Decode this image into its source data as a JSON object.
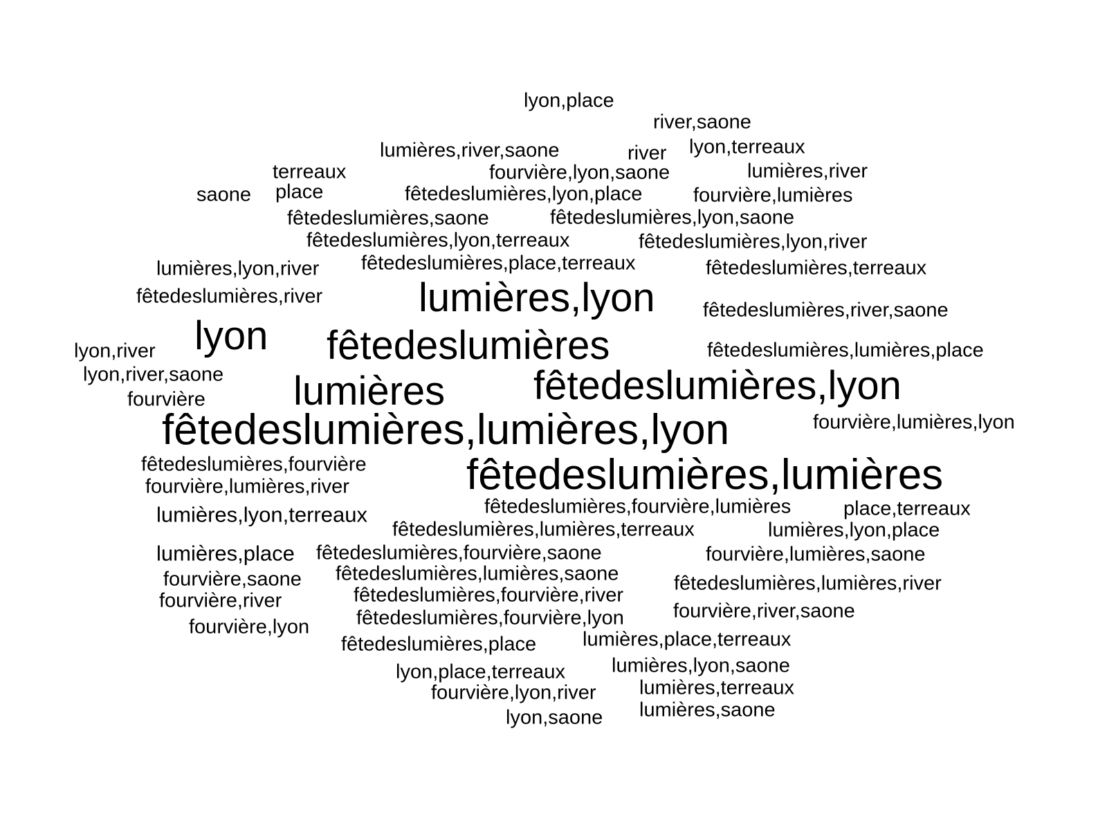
{
  "word_cloud": {
    "text_color": "#000000",
    "background_color": "#ffffff",
    "words": [
      "lyon,place",
      "river,saone",
      "lumières,river,saone",
      "river",
      "lyon,terreaux",
      "terreaux",
      "fourvière,lyon,saone",
      "lumières,river",
      "saone",
      "place",
      "fêtedeslumières,lyon,place",
      "fourvière,lumières",
      "fêtedeslumières,saone",
      "fêtedeslumières,lyon,saone",
      "fêtedeslumières,lyon,terreaux",
      "fêtedeslumières,lyon,river",
      "lumières,lyon,river",
      "fêtedeslumières,place,terreaux",
      "fêtedeslumières,terreaux",
      "lumières,lyon",
      "fêtedeslumières,river",
      "fêtedeslumières,river,saone",
      "lyon",
      "fêtedeslumières",
      "lyon,river",
      "fêtedeslumières,lumières,place",
      "lyon,river,saone",
      "lumières",
      "fêtedeslumières,lyon",
      "fourvière",
      "fêtedeslumières,lumières,lyon",
      "fourvière,lumières,lyon",
      "fêtedeslumières,fourvière",
      "fêtedeslumières,lumières",
      "fourvière,lumières,river",
      "fêtedeslumières,fourvière,lumières",
      "place,terreaux",
      "lumières,lyon,terreaux",
      "fêtedeslumières,lumières,terreaux",
      "lumières,lyon,place",
      "lumières,place",
      "fêtedeslumières,fourvière,saone",
      "fourvière,lumières,saone",
      "fourvière,saone",
      "fêtedeslumières,lumières,saone",
      "fêtedeslumières,lumières,river",
      "fourvière,river",
      "fêtedeslumières,fourvière,river",
      "fourvière,river,saone",
      "fourvière,lyon",
      "fêtedeslumières,fourvière,lyon",
      "fêtedeslumières,place",
      "lumières,place,terreaux",
      "lumières,lyon,saone",
      "lyon,place,terreaux",
      "fourvière,lyon,river",
      "lumières,terreaux",
      "lyon,saone",
      "lumières,saone"
    ]
  }
}
